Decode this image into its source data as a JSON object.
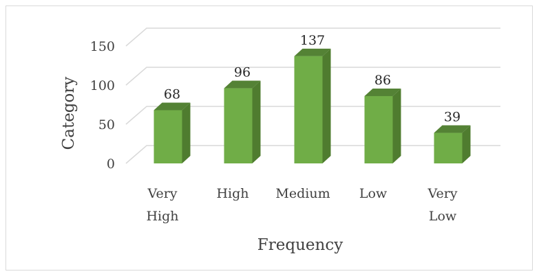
{
  "chart_data": {
    "type": "bar",
    "style": "3d-column",
    "categories": [
      [
        "Very",
        "High"
      ],
      [
        "High"
      ],
      [
        "Medium"
      ],
      [
        "Low"
      ],
      [
        "Very",
        "Low"
      ]
    ],
    "values": [
      68,
      96,
      137,
      86,
      39
    ],
    "data_labels": [
      "68",
      "96",
      "137",
      "86",
      "39"
    ],
    "xlabel": "Frequency",
    "ylabel": "Category",
    "yticks": [
      "0",
      "50",
      "100",
      "150"
    ],
    "ylim": [
      0,
      150
    ],
    "grid": true,
    "legend": "none",
    "colors": {
      "front": "#70ad47",
      "side": "#4f7c2f",
      "top": "#548235",
      "gridline": "#d9d9d9"
    }
  }
}
